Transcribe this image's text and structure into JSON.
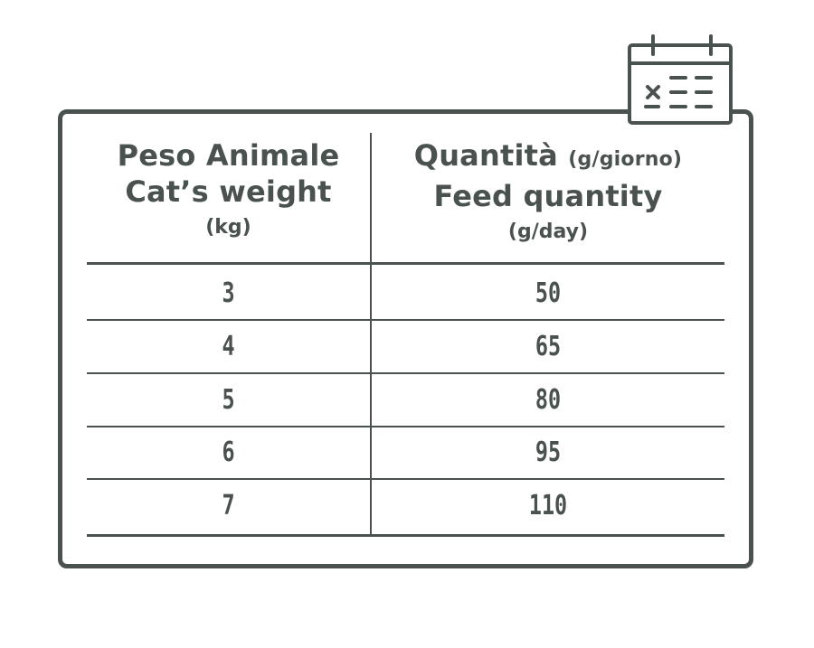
{
  "table": {
    "header": {
      "left": {
        "line1": "Peso Animale",
        "line2": "Cat’s weight",
        "unit": "(kg)"
      },
      "right": {
        "line1": "Quantità",
        "line1_unit": "(g/giorno)",
        "line2": "Feed quantity",
        "unit": "(g/day)"
      }
    },
    "rows": [
      {
        "weight": "3",
        "quantity": "50"
      },
      {
        "weight": "4",
        "quantity": "65"
      },
      {
        "weight": "5",
        "quantity": "80"
      },
      {
        "weight": "6",
        "quantity": "95"
      },
      {
        "weight": "7",
        "quantity": "110"
      }
    ]
  },
  "icon": "calendar-icon",
  "colors": {
    "ink": "#4a524f",
    "background": "#ffffff"
  }
}
